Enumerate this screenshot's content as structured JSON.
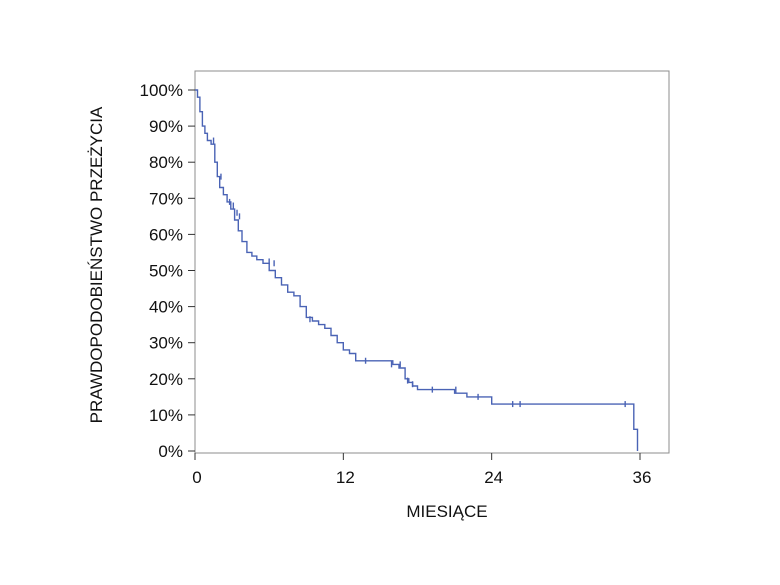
{
  "chart_data": {
    "type": "line",
    "subtype": "kaplan-meier-survival-curve",
    "title": "",
    "xlabel": "MIESIĄCE",
    "ylabel": "PRAWDOPODOBIEŃSTWO PRZEŻYCIA",
    "xlim": [
      0,
      37.5
    ],
    "ylim": [
      0,
      1.05
    ],
    "x_ticks": [
      0,
      12,
      24,
      36
    ],
    "x_tick_labels": [
      "0",
      "12",
      "24",
      "36"
    ],
    "y_ticks": [
      0,
      0.1,
      0.2,
      0.3,
      0.4,
      0.5,
      0.6,
      0.7,
      0.8,
      0.9,
      1.0
    ],
    "y_tick_labels": [
      "0%",
      "10%",
      "20%",
      "30%",
      "40%",
      "50%",
      "60%",
      "70%",
      "80%",
      "90%",
      "100%"
    ],
    "grid": false,
    "line_color": "#4a63b5",
    "series": [
      {
        "name": "survival",
        "x": [
          0,
          0.2,
          0.4,
          0.6,
          0.8,
          1.0,
          1.3,
          1.6,
          1.8,
          2.0,
          2.3,
          2.6,
          2.9,
          3.2,
          3.5,
          3.8,
          4.2,
          4.6,
          5.0,
          5.5,
          6.0,
          6.5,
          7.0,
          7.5,
          8.0,
          8.5,
          9.0,
          9.5,
          10.0,
          10.5,
          11.0,
          11.5,
          12.0,
          12.5,
          13.0,
          14.0,
          15.0,
          16.0,
          16.5,
          17.0,
          17.3,
          17.6,
          18.0,
          19.0,
          21.0,
          22.0,
          24.0,
          26.0,
          28.0,
          30.0,
          32.0,
          35.5,
          35.8
        ],
        "y": [
          1.0,
          0.98,
          0.94,
          0.9,
          0.88,
          0.86,
          0.85,
          0.8,
          0.76,
          0.73,
          0.71,
          0.69,
          0.67,
          0.64,
          0.61,
          0.58,
          0.55,
          0.54,
          0.53,
          0.52,
          0.5,
          0.48,
          0.46,
          0.44,
          0.43,
          0.4,
          0.37,
          0.36,
          0.35,
          0.34,
          0.32,
          0.3,
          0.28,
          0.27,
          0.25,
          0.25,
          0.25,
          0.24,
          0.23,
          0.2,
          0.19,
          0.18,
          0.17,
          0.17,
          0.16,
          0.15,
          0.13,
          0.13,
          0.13,
          0.13,
          0.13,
          0.06,
          0.0
        ]
      }
    ],
    "censor_marks": [
      {
        "x": 1.5,
        "y": 0.86
      },
      {
        "x": 2.1,
        "y": 0.76
      },
      {
        "x": 2.8,
        "y": 0.69
      },
      {
        "x": 3.1,
        "y": 0.68
      },
      {
        "x": 3.4,
        "y": 0.66
      },
      {
        "x": 3.6,
        "y": 0.65
      },
      {
        "x": 6.0,
        "y": 0.525
      },
      {
        "x": 6.4,
        "y": 0.52
      },
      {
        "x": 9.3,
        "y": 0.365
      },
      {
        "x": 13.8,
        "y": 0.25
      },
      {
        "x": 15.9,
        "y": 0.24
      },
      {
        "x": 16.6,
        "y": 0.24
      },
      {
        "x": 17.2,
        "y": 0.195
      },
      {
        "x": 17.6,
        "y": 0.185
      },
      {
        "x": 19.2,
        "y": 0.17
      },
      {
        "x": 21.1,
        "y": 0.17
      },
      {
        "x": 22.9,
        "y": 0.15
      },
      {
        "x": 25.7,
        "y": 0.13
      },
      {
        "x": 26.3,
        "y": 0.13
      },
      {
        "x": 34.8,
        "y": 0.13
      }
    ]
  }
}
